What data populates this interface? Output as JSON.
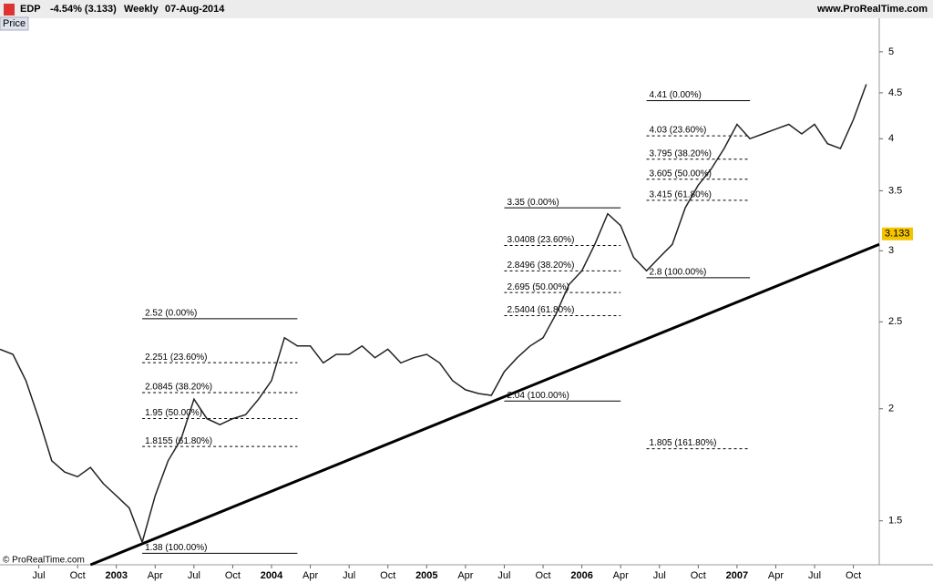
{
  "header": {
    "symbol": "EDP",
    "change": "-4.54% (3.133)",
    "period": "Weekly",
    "date": "07-Aug-2014",
    "site": "www.ProRealTime.com"
  },
  "panel_label": "Price",
  "copyright": "© ProRealTime.com",
  "chart_data": {
    "type": "line",
    "log_scale": true,
    "xlim": [
      "2002-04",
      "2007-12"
    ],
    "ylim": [
      1.34,
      5.45
    ],
    "yticks": [
      1.5,
      2,
      2.5,
      3,
      3.5,
      4,
      4.5,
      5
    ],
    "xticks": [
      {
        "value": "2002-07",
        "label": "Jul"
      },
      {
        "value": "2002-10",
        "label": "Oct"
      },
      {
        "value": "2003-01",
        "label": "2003"
      },
      {
        "value": "2003-04",
        "label": "Apr"
      },
      {
        "value": "2003-07",
        "label": "Jul"
      },
      {
        "value": "2003-10",
        "label": "Oct"
      },
      {
        "value": "2004-01",
        "label": "2004"
      },
      {
        "value": "2004-04",
        "label": "Apr"
      },
      {
        "value": "2004-07",
        "label": "Jul"
      },
      {
        "value": "2004-10",
        "label": "Oct"
      },
      {
        "value": "2005-01",
        "label": "2005"
      },
      {
        "value": "2005-04",
        "label": "Apr"
      },
      {
        "value": "2005-07",
        "label": "Jul"
      },
      {
        "value": "2005-10",
        "label": "Oct"
      },
      {
        "value": "2006-01",
        "label": "2006"
      },
      {
        "value": "2006-04",
        "label": "Apr"
      },
      {
        "value": "2006-07",
        "label": "Jul"
      },
      {
        "value": "2006-10",
        "label": "Oct"
      },
      {
        "value": "2007-01",
        "label": "2007"
      },
      {
        "value": "2007-04",
        "label": "Apr"
      },
      {
        "value": "2007-07",
        "label": "Jul"
      },
      {
        "value": "2007-10",
        "label": "Oct"
      }
    ],
    "series": [
      {
        "name": "EDP",
        "color": "#222222",
        "x": [
          "2002-04",
          "2002-05",
          "2002-06",
          "2002-07",
          "2002-08",
          "2002-09",
          "2002-10",
          "2002-11",
          "2002-12",
          "2003-01",
          "2003-02",
          "2003-03",
          "2003-04",
          "2003-05",
          "2003-06",
          "2003-07",
          "2003-08",
          "2003-09",
          "2003-10",
          "2003-11",
          "2003-12",
          "2004-01",
          "2004-02",
          "2004-03",
          "2004-04",
          "2004-05",
          "2004-06",
          "2004-07",
          "2004-08",
          "2004-09",
          "2004-10",
          "2004-11",
          "2004-12",
          "2005-01",
          "2005-02",
          "2005-03",
          "2005-04",
          "2005-05",
          "2005-06",
          "2005-07",
          "2005-08",
          "2005-09",
          "2005-10",
          "2005-11",
          "2005-12",
          "2006-01",
          "2006-02",
          "2006-03",
          "2006-04",
          "2006-05",
          "2006-06",
          "2006-07",
          "2006-08",
          "2006-09",
          "2006-10",
          "2006-11",
          "2006-12",
          "2007-01",
          "2007-02",
          "2007-03",
          "2007-04",
          "2007-05",
          "2007-06",
          "2007-07",
          "2007-08",
          "2007-09",
          "2007-10",
          "2007-11"
        ],
        "values": [
          2.33,
          2.3,
          2.15,
          1.95,
          1.75,
          1.7,
          1.68,
          1.72,
          1.65,
          1.6,
          1.55,
          1.42,
          1.6,
          1.75,
          1.85,
          2.05,
          1.95,
          1.92,
          1.95,
          1.97,
          2.05,
          2.15,
          2.4,
          2.35,
          2.35,
          2.25,
          2.3,
          2.3,
          2.35,
          2.28,
          2.33,
          2.25,
          2.28,
          2.3,
          2.25,
          2.15,
          2.1,
          2.08,
          2.07,
          2.2,
          2.28,
          2.35,
          2.4,
          2.55,
          2.75,
          2.85,
          3.05,
          3.3,
          3.2,
          2.95,
          2.85,
          2.95,
          3.05,
          3.35,
          3.55,
          3.7,
          3.9,
          4.15,
          4.0,
          4.05,
          4.1,
          4.15,
          4.05,
          4.15,
          3.95,
          3.9,
          4.2,
          4.6
        ]
      }
    ],
    "trendline": {
      "color": "#000000",
      "x": [
        "2002-11",
        "2007-12"
      ],
      "values": [
        1.34,
        3.05
      ]
    },
    "last_price": {
      "value": 3.133,
      "label": "3.133",
      "color": "#f5c400"
    },
    "fibonacci": [
      {
        "x": [
          "2003-03",
          "2004-03"
        ],
        "levels": [
          {
            "value": 2.52,
            "label": "2.52 (0.00%)",
            "solid": true
          },
          {
            "value": 2.251,
            "label": "2.251 (23.60%)"
          },
          {
            "value": 2.0845,
            "label": "2.0845 (38.20%)"
          },
          {
            "value": 1.95,
            "label": "1.95 (50.00%)"
          },
          {
            "value": 1.8155,
            "label": "1.8155 (61.80%)"
          },
          {
            "value": 1.38,
            "label": "1.38 (100.00%)",
            "solid": true
          }
        ]
      },
      {
        "x": [
          "2005-07",
          "2006-04"
        ],
        "levels": [
          {
            "value": 3.35,
            "label": "3.35 (0.00%)",
            "solid": true
          },
          {
            "value": 3.0408,
            "label": "3.0408 (23.60%)"
          },
          {
            "value": 2.8496,
            "label": "2.8496 (38.20%)"
          },
          {
            "value": 2.695,
            "label": "2.695 (50.00%)"
          },
          {
            "value": 2.5404,
            "label": "2.5404 (61.80%)"
          },
          {
            "value": 2.04,
            "label": "2.04 (100.00%)",
            "solid": true
          }
        ]
      },
      {
        "x": [
          "2006-06",
          "2007-02"
        ],
        "levels": [
          {
            "value": 4.41,
            "label": "4.41 (0.00%)",
            "solid": true
          },
          {
            "value": 4.03,
            "label": "4.03 (23.60%)"
          },
          {
            "value": 3.795,
            "label": "3.795 (38.20%)"
          },
          {
            "value": 3.605,
            "label": "3.605 (50.00%)"
          },
          {
            "value": 3.415,
            "label": "3.415 (61.80%)"
          },
          {
            "value": 2.8,
            "label": "2.8 (100.00%)",
            "solid": true
          },
          {
            "value": 1.805,
            "label": "1.805 (161.80%)"
          }
        ]
      }
    ]
  }
}
